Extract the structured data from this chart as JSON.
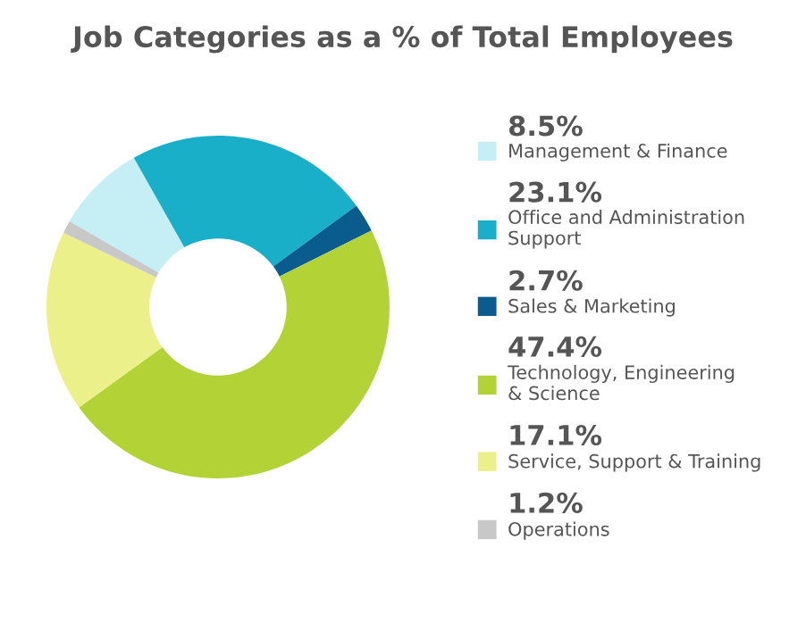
{
  "chart_data": {
    "type": "donut",
    "title": "Job Categories as a % of Total Employees",
    "categories": [
      "Management & Finance",
      "Office and Administration\nSupport",
      "Sales & Marketing",
      "Technology, Engineering\n& Science",
      "Service, Support & Training",
      "Operations"
    ],
    "values": [
      8.5,
      23.1,
      2.7,
      47.4,
      17.1,
      1.2
    ],
    "value_labels": [
      "8.5%",
      "23.1%",
      "2.7%",
      "47.4%",
      "17.1%",
      "1.2%"
    ],
    "colors": [
      "#c5eef5",
      "#1aafc8",
      "#0a5c8f",
      "#b2d235",
      "#ecf08a",
      "#c8c8c8"
    ],
    "legend": "right"
  }
}
